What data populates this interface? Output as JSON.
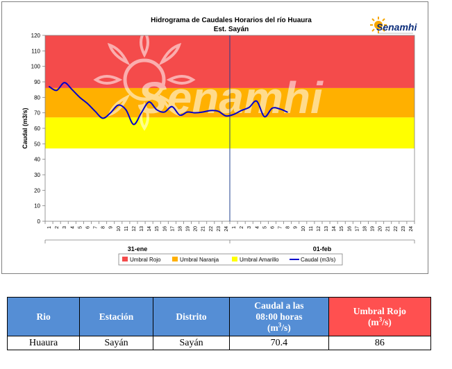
{
  "chart_data": {
    "type": "line",
    "title": "Hidrograma  de Caudales Horarios  del río Huaura",
    "subtitle": "Est. Sayán",
    "ylabel": "Caudal  (m3/s)",
    "ylim": [
      0,
      120
    ],
    "yticks": [
      0,
      10,
      20,
      30,
      40,
      50,
      60,
      70,
      80,
      90,
      100,
      110,
      120
    ],
    "xticks_hours": [
      "1",
      "2",
      "3",
      "4",
      "5",
      "6",
      "7",
      "8",
      "9",
      "10",
      "11",
      "12",
      "13",
      "14",
      "15",
      "16",
      "17",
      "18",
      "19",
      "20",
      "21",
      "22",
      "23",
      "24",
      "1",
      "2",
      "3",
      "4",
      "5",
      "6",
      "7",
      "8",
      "9",
      "10",
      "11",
      "12",
      "13",
      "14",
      "15",
      "16",
      "17",
      "18",
      "19",
      "20",
      "21",
      "22",
      "23",
      "24"
    ],
    "date_labels": [
      "31-ene",
      "01-feb"
    ],
    "thresholds": {
      "rojo": {
        "name": "Umbral Rojo",
        "from": 86,
        "to": 120,
        "color": "#f44b4b"
      },
      "naranja": {
        "name": "Umbral Naranja",
        "from": 67,
        "to": 86,
        "color": "#ffb000"
      },
      "amarillo": {
        "name": "Umbral Amarillo",
        "from": 47,
        "to": 67,
        "color": "#ffff00"
      }
    },
    "series": [
      {
        "name": "Caudal (m3/s)",
        "color": "#0000cc",
        "values": [
          87.0,
          84.5,
          89.5,
          85.0,
          80.0,
          76.0,
          71.0,
          66.5,
          70.0,
          75.0,
          72.0,
          62.5,
          70.0,
          77.0,
          72.0,
          70.5,
          74.0,
          68.5,
          70.5,
          70.0,
          70.5,
          71.5,
          71.0,
          68.0,
          69.0,
          71.5,
          73.5,
          77.5,
          67.5,
          73.0,
          72.5,
          70.4
        ]
      }
    ],
    "legend": [
      "Umbral Rojo",
      "Umbral Naranja",
      "Umbral Amarillo",
      "Caudal (m3/s)"
    ],
    "legend_position": "bottom",
    "grid": false
  },
  "watermark": "Senamhi",
  "logo": {
    "text": "Senamhi"
  },
  "table": {
    "headers": [
      "Rio",
      "Estación",
      "Distrito",
      "Caudal a las 08:00 horas (m3/s)",
      "Umbral Rojo (m3/s)"
    ],
    "h_rio": "Rio",
    "h_estacion": "Estación",
    "h_distrito": "Distrito",
    "h_caudal_a": "Caudal a las",
    "h_caudal_b": "08:00 horas",
    "h_caudal_unit": "(m",
    "h_caudal_exp": "3",
    "h_caudal_unit_end": "/s)",
    "h_umbral_a": "Umbral Rojo",
    "h_umbral_unit": "(m",
    "h_umbral_exp": "3",
    "h_umbral_unit_end": "/s)",
    "row": {
      "rio": "Huaura",
      "estacion": "Sayán",
      "distrito": "Sayán",
      "caudal": "70.4",
      "umbral": "86"
    }
  }
}
